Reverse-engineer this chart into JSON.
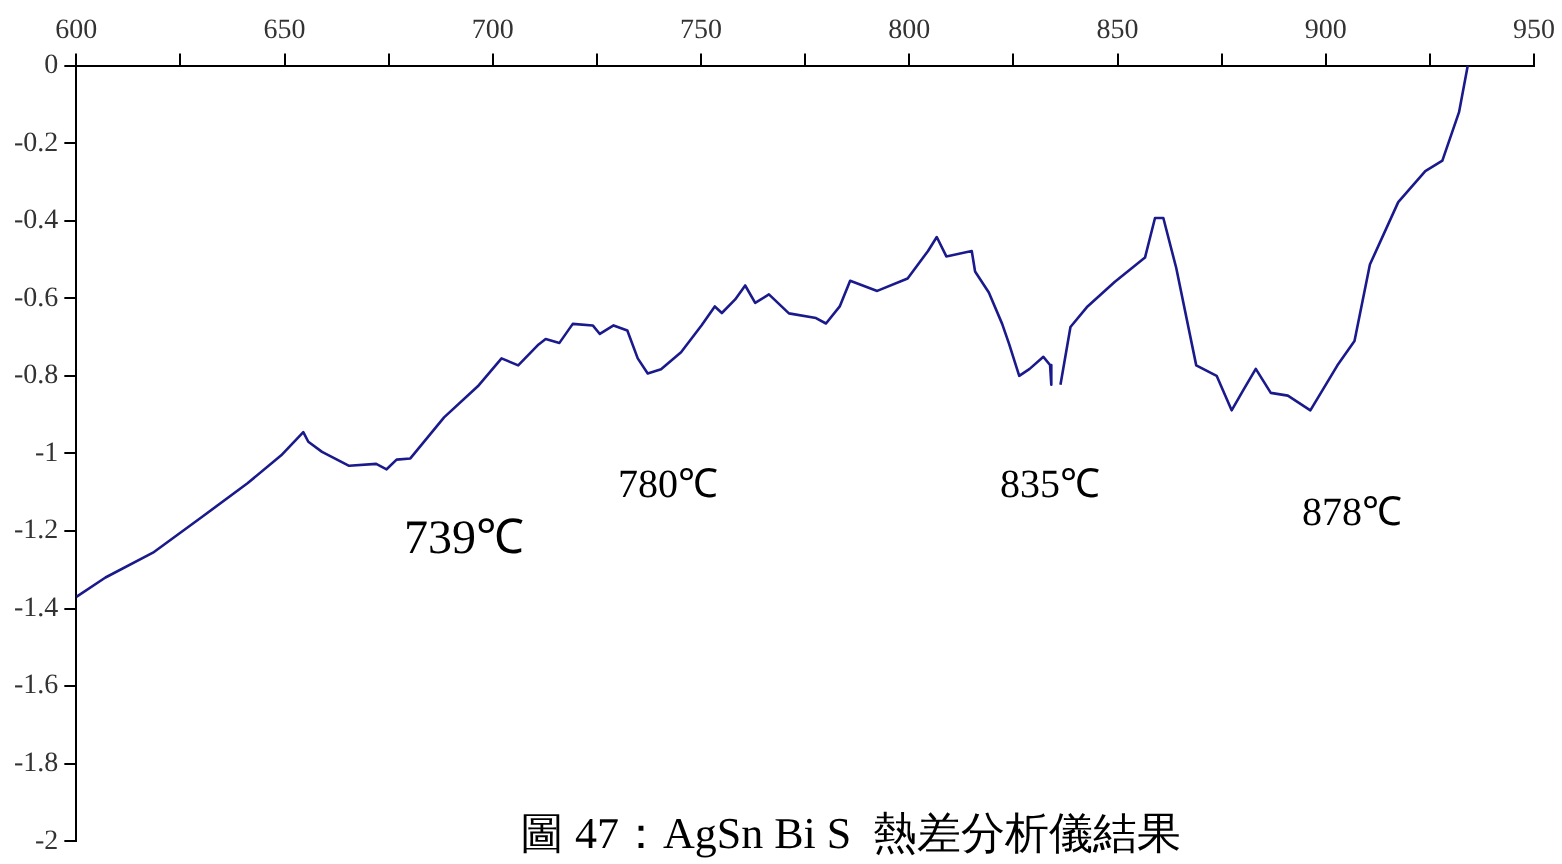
{
  "chart_data": {
    "type": "line",
    "title": "圖 47：AgSn Bi S  熱差分析儀結果",
    "x": [
      600,
      607,
      618.4,
      629.9,
      641.1,
      649.2,
      654.5,
      655.7,
      659,
      665.5,
      672,
      674.5,
      676.9,
      680.2,
      688.3,
      696.4,
      702.1,
      706.1,
      711,
      712.7,
      716,
      719.2,
      724,
      725.7,
      729,
      732.3,
      734.8,
      737.2,
      740.4,
      745.2,
      750.1,
      753.3,
      755,
      758.2,
      760.6,
      763,
      766.3,
      771.1,
      777.6,
      780,
      783.3,
      785.8,
      792.3,
      799.6,
      804.5,
      806.6,
      808.9,
      815,
      815.8,
      819.1,
      822.3,
      824,
      826.4,
      828.9,
      832.2,
      833.8,
      834.1,
      835.2,
      836.3,
      838.7,
      842.8,
      849.3,
      856.6,
      859,
      861,
      864.1,
      868.9,
      873.8,
      877.4,
      880.3,
      883.2,
      886.8,
      890.9,
      896.3,
      902.8,
      906.9,
      910.6,
      917.4,
      923.9,
      928,
      932,
      934.1
    ],
    "series": [
      {
        "color": "#1a1a8c",
        "values": [
          -1.37,
          -1.32,
          -1.256,
          -1.166,
          -1.077,
          -1.005,
          -0.945,
          -0.97,
          -0.996,
          -1.032,
          -1.027,
          -1.041,
          -1.016,
          -1.013,
          -0.907,
          -0.827,
          -0.755,
          -0.773,
          -0.719,
          -0.705,
          -0.715,
          -0.666,
          -0.67,
          -0.692,
          -0.67,
          -0.683,
          -0.755,
          -0.794,
          -0.783,
          -0.739,
          -0.67,
          -0.621,
          -0.638,
          -0.603,
          -0.567,
          -0.612,
          -0.59,
          -0.639,
          -0.651,
          -0.665,
          -0.621,
          -0.555,
          -0.581,
          -0.549,
          -0.478,
          -0.442,
          -0.492,
          -0.478,
          -0.531,
          -0.585,
          -0.666,
          -0.719,
          -0.8,
          -0.782,
          -0.751,
          -0.772,
          -0.823,
          null,
          -0.823,
          -0.674,
          -0.621,
          -0.558,
          -0.495,
          -0.393,
          -0.393,
          -0.522,
          -0.773,
          -0.8,
          -0.889,
          -0.835,
          -0.782,
          -0.844,
          -0.851,
          -0.889,
          -0.773,
          -0.71,
          -0.513,
          -0.352,
          -0.272,
          -0.245,
          -0.12,
          0
        ]
      }
    ],
    "xlim": [
      600,
      950
    ],
    "ylim": [
      -2,
      0
    ],
    "xticks": [
      600,
      {
        "value": 625,
        "label": null
      },
      650,
      {
        "value": 675,
        "label": null
      },
      700,
      {
        "value": 725,
        "label": null
      },
      750,
      {
        "value": 775,
        "label": null
      },
      800,
      {
        "value": 825,
        "label": null
      },
      850,
      {
        "value": 875,
        "label": null
      },
      900,
      {
        "value": 925,
        "label": null
      },
      950
    ],
    "yticks": [
      0,
      -0.2,
      -0.4,
      -0.6,
      -0.8,
      -1,
      -1.2,
      -1.4,
      -1.6,
      -1.8,
      -2
    ],
    "annotations": [
      "739℃",
      "780℃",
      "835℃",
      "878℃"
    ],
    "grid": false,
    "legend": false,
    "marker": "none",
    "line_style": "solid"
  }
}
